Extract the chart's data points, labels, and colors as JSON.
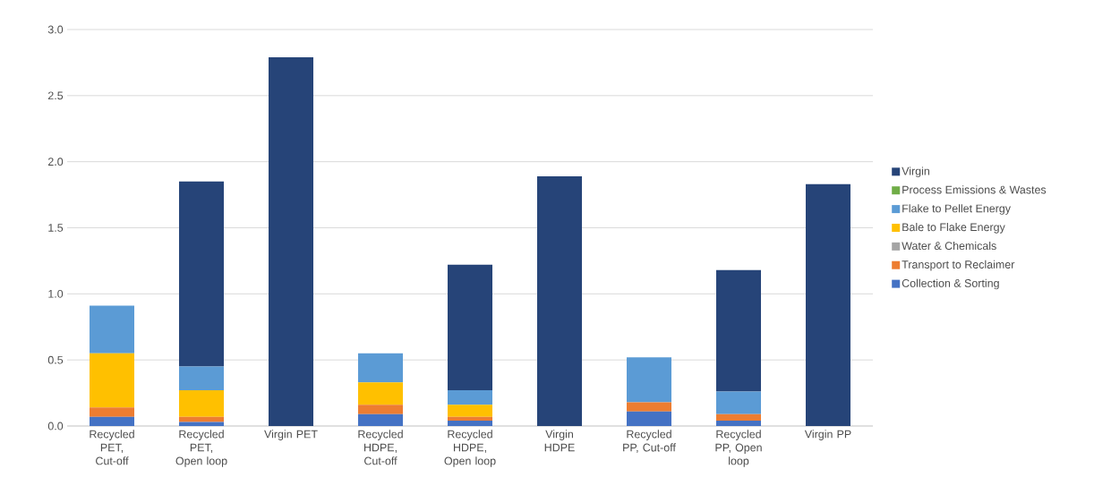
{
  "chart_data": {
    "type": "bar",
    "stacked": true,
    "categories": [
      "Recycled PET, Cut-off",
      "Recycled PET, Open loop",
      "Virgin PET",
      "Recycled HDPE, Cut-off",
      "Recycled HDPE, Open loop",
      "Virgin HDPE",
      "Recycled PP, Cut-off",
      "Recycled PP, Open loop",
      "Virgin PP"
    ],
    "series": [
      {
        "name": "Collection & Sorting",
        "color": "#4472c4",
        "values": [
          0.07,
          0.03,
          0,
          0.09,
          0.04,
          0,
          0.11,
          0.04,
          0
        ]
      },
      {
        "name": "Transport to Reclaimer",
        "color": "#ed7d31",
        "values": [
          0.07,
          0.04,
          0,
          0.07,
          0.03,
          0,
          0.07,
          0.05,
          0
        ]
      },
      {
        "name": "Water & Chemicals",
        "color": "#a5a5a5",
        "values": [
          0,
          0,
          0,
          0,
          0,
          0,
          0,
          0,
          0
        ]
      },
      {
        "name": "Bale to Flake Energy",
        "color": "#ffc000",
        "values": [
          0.41,
          0.2,
          0,
          0.17,
          0.09,
          0,
          0,
          0,
          0
        ]
      },
      {
        "name": "Flake to Pellet Energy",
        "color": "#5b9bd5",
        "values": [
          0.36,
          0.18,
          0,
          0.22,
          0.11,
          0,
          0.34,
          0.17,
          0
        ]
      },
      {
        "name": "Process Emissions & Wastes",
        "color": "#70ad47",
        "values": [
          0,
          0,
          0,
          0,
          0,
          0,
          0,
          0,
          0
        ]
      },
      {
        "name": "Virgin",
        "color": "#264478",
        "values": [
          0,
          1.4,
          2.79,
          0,
          0.95,
          1.89,
          0,
          0.92,
          1.83
        ]
      }
    ],
    "ylim": [
      0,
      3
    ],
    "yticks": [
      {
        "value": 0,
        "label": "0.0"
      },
      {
        "value": 0.5,
        "label": "0.5"
      },
      {
        "value": 1,
        "label": "1.0"
      },
      {
        "value": 1.5,
        "label": "1.5"
      },
      {
        "value": 2,
        "label": "2.0"
      },
      {
        "value": 2.5,
        "label": "2.5"
      },
      {
        "value": 3,
        "label": "3.0"
      }
    ],
    "grid": "y",
    "legend": "right"
  }
}
